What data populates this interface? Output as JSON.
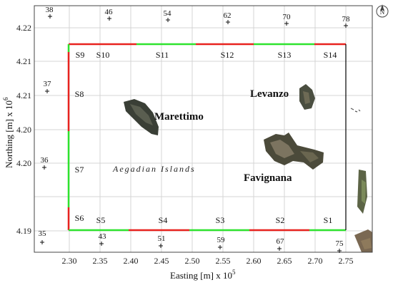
{
  "axes": {
    "xlabel": "Easting [m] x 10",
    "xlabel_exp": "5",
    "ylabel": "Northing [m] x 10",
    "ylabel_exp": "6",
    "x_ticks": [
      "2.30",
      "2.35",
      "2.40",
      "2.45",
      "2.50",
      "2.55",
      "2.60",
      "2.65",
      "2.70",
      "2.75"
    ],
    "y_ticks": [
      "4.22",
      "4.21",
      "4.21",
      "4.20",
      "4.20",
      "4.19"
    ]
  },
  "compass": {
    "letter": "N",
    "icon": "north-arrow-icon"
  },
  "stations": [
    "38",
    "46",
    "54",
    "62",
    "70",
    "78",
    "37",
    "36",
    "35",
    "43",
    "51",
    "59",
    "67",
    "75"
  ],
  "segments": [
    "S9",
    "S10",
    "S11",
    "S12",
    "S13",
    "S14",
    "S8",
    "S7",
    "S6",
    "S5",
    "S4",
    "S3",
    "S2",
    "S1"
  ],
  "labels": {
    "island_marettimo": "Marettimo",
    "island_levanzo": "Levanzo",
    "island_favignana": "Favignana",
    "region": "Aegadian Islands"
  },
  "colors": {
    "red": "#e8231f",
    "green": "#2ee32e",
    "sea_frame": "#000000"
  }
}
